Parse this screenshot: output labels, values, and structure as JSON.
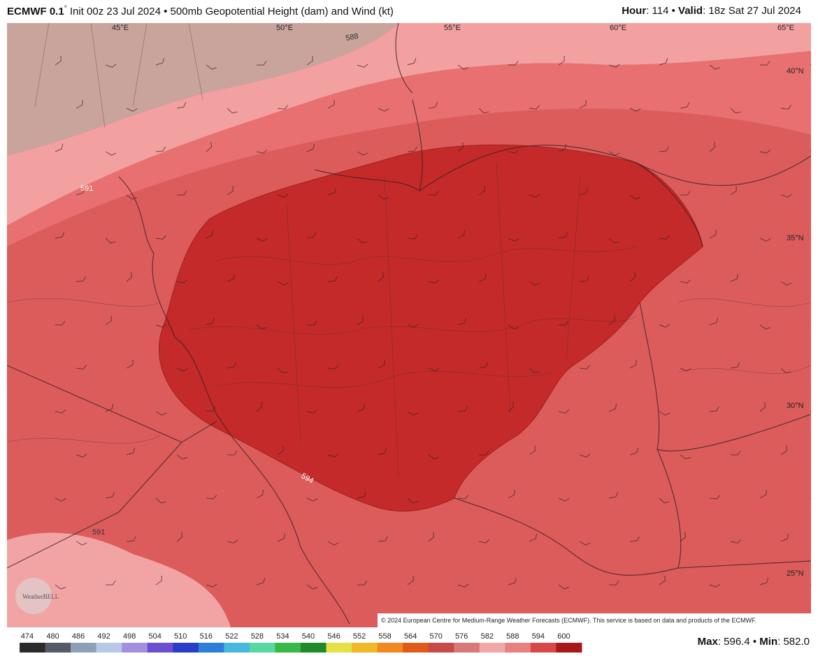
{
  "header": {
    "model": "ECMWF 0.1",
    "degree": "°",
    "description": "Init 00z 23 Jul 2024 • 500mb Geopotential Height (dam) and Wind (kt)",
    "hour_key": "Hour",
    "hour_value": ": 114 • ",
    "valid_key": "Valid",
    "valid_value": ": 18z Sat 27 Jul 2024"
  },
  "map": {
    "longitudes": [
      "45°E",
      "50°E",
      "55°E",
      "60°E",
      "65°E"
    ],
    "latitudes": [
      "40°N",
      "35°N",
      "30°N",
      "25°N"
    ],
    "contours": [
      "588",
      "591",
      "594",
      "591"
    ],
    "watermark": "WeatherBELL",
    "copyright": "© 2024 European Centre for Medium-Range Weather Forecasts (ECMWF). This service is based on data and products of the ECMWF."
  },
  "colorbar": {
    "ticks": [
      474,
      480,
      486,
      492,
      498,
      504,
      510,
      516,
      522,
      528,
      534,
      540,
      546,
      552,
      558,
      564,
      570,
      576,
      582,
      588,
      594,
      600
    ],
    "colors": [
      "#2b2b2b",
      "#555a66",
      "#8ea0b8",
      "#b8c8e6",
      "#a28fe0",
      "#6a4fd0",
      "#2a3cc8",
      "#2c7ed8",
      "#48b8e0",
      "#58d8a0",
      "#38b848",
      "#1e8a2a",
      "#e6e048",
      "#f0b828",
      "#f08a20",
      "#e05a18",
      "#c84a48",
      "#d87878",
      "#f0a8a8",
      "#e88080",
      "#d84848",
      "#a81818"
    ]
  },
  "footer": {
    "max_key": "Max",
    "max_value": ": 596.4 • ",
    "min_key": "Min",
    "min_value": ": 582.0"
  }
}
